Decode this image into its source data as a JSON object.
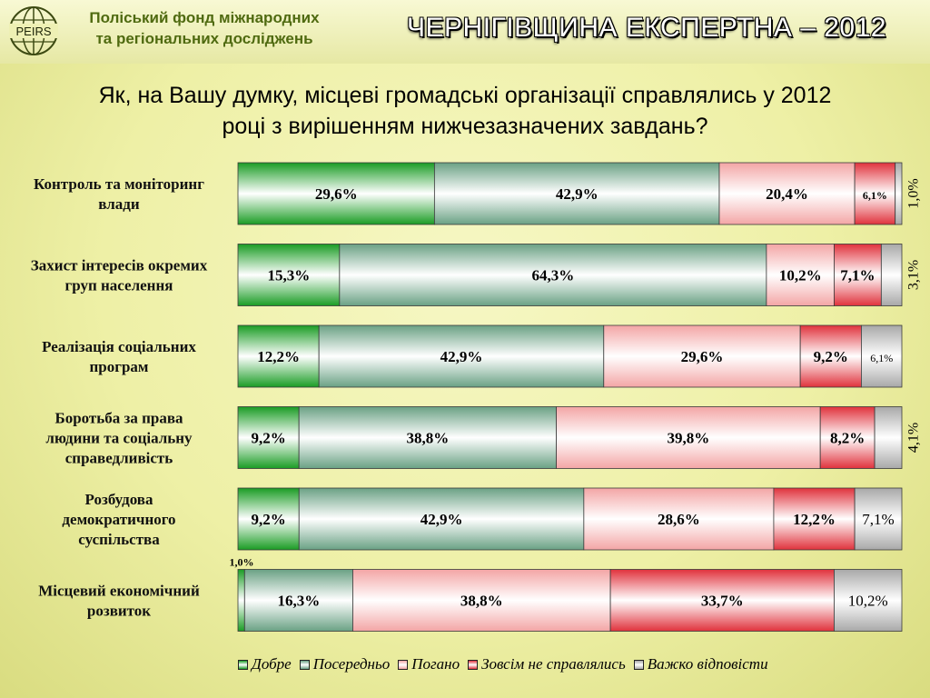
{
  "header": {
    "org_line1": "Поліський фонд міжнародних",
    "org_line2": "та регіональних досліджень",
    "logo_text": "PEIRS",
    "brand_title": "ЧЕРНІГІВЩИНА ЕКСПЕРТНА – 2012"
  },
  "question": {
    "line1": "Як, на Вашу думку, місцеві громадські організації справлялись у 2012",
    "line2": "році з вирішенням нижчезазначених завдань?"
  },
  "colors": {
    "good": "#1a9c24",
    "average": "#6aa184",
    "bad": "#f3a5a5",
    "very_bad": "#e0323c",
    "hard": "#a8a8a8"
  },
  "chart_data": {
    "type": "bar",
    "orientation": "horizontal",
    "stacked": "100%",
    "categories": [
      [
        "Контроль та моніторинг",
        "влади"
      ],
      [
        "Захист інтересів окремих",
        "груп населення"
      ],
      [
        "Реалізація соціальних",
        "програм"
      ],
      [
        "Боротьба за права",
        "людини та соціальну",
        "справедливість"
      ],
      [
        "Розбудова",
        "демократичного",
        "суспільства"
      ],
      [
        "Місцевий економічний",
        "розвиток"
      ]
    ],
    "series": [
      {
        "name": "Добре",
        "key": "good",
        "values": [
          29.6,
          15.3,
          12.2,
          9.2,
          9.2,
          1.0
        ],
        "labels": [
          "29,6%",
          "15,3%",
          "12,2%",
          "9,2%",
          "9,2%",
          "1,0%"
        ]
      },
      {
        "name": "Посередньо",
        "key": "average",
        "values": [
          42.9,
          64.3,
          42.9,
          38.8,
          42.9,
          16.3
        ],
        "labels": [
          "42,9%",
          "64,3%",
          "42,9%",
          "38,8%",
          "42,9%",
          "16,3%"
        ]
      },
      {
        "name": "Погано",
        "key": "bad",
        "values": [
          20.4,
          10.2,
          29.6,
          39.8,
          28.6,
          38.8
        ],
        "labels": [
          "20,4%",
          "10,2%",
          "29,6%",
          "39,8%",
          "28,6%",
          "38,8%"
        ]
      },
      {
        "name": "Зовсім не справлялись",
        "key": "very_bad",
        "values": [
          6.1,
          7.1,
          9.2,
          8.2,
          12.2,
          33.7
        ],
        "labels": [
          "6,1%",
          "7,1%",
          "9,2%",
          "8,2%",
          "12,2%",
          "33,7%"
        ]
      },
      {
        "name": "Важко відповісти",
        "key": "hard",
        "values": [
          1.0,
          3.1,
          6.1,
          4.1,
          7.1,
          10.2
        ],
        "labels": [
          "1,0%",
          "3,1%",
          "6,1%",
          "4,1%",
          "7,1%",
          "10,2%"
        ]
      }
    ],
    "xlim": [
      0,
      100
    ],
    "legend": "bottom"
  }
}
